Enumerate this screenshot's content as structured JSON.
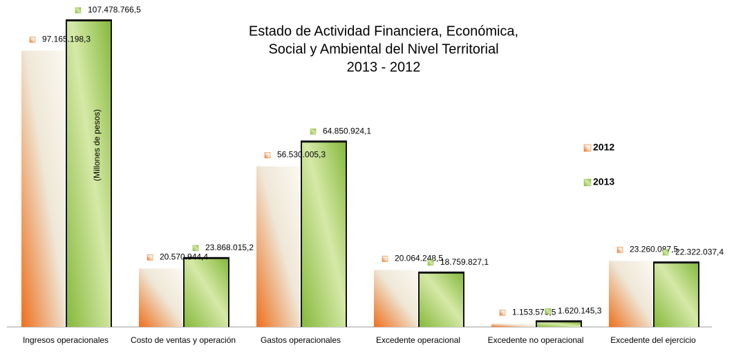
{
  "chart_data": {
    "type": "bar",
    "title": [
      "Estado de Actividad Financiera, Económica,",
      "Social y Ambiental del Nivel Territorial",
      "2013 - 2012"
    ],
    "y_label": "(Millones de pesos)",
    "categories": [
      "Ingresos operacionales",
      "Costo de ventas y operación",
      "Gastos operacionales",
      "Excedente operacional",
      "Excedente  no operacional",
      "Excedente del ejercicio"
    ],
    "series": [
      {
        "name": "2012",
        "color": "#ee6f1c",
        "values": [
          97165198.3,
          20570944.4,
          56530005.3,
          20064248.5,
          1153575.5,
          23260087.5
        ],
        "value_labels": [
          "97.165.198,3",
          "20.570.944,4",
          "56.530.005,3",
          "20.064.248,5",
          "1.153.575,5",
          "23.260.087,5"
        ]
      },
      {
        "name": "2013",
        "color": "#86b93c",
        "values": [
          107478766.5,
          23868015.2,
          64850924.1,
          18759827.1,
          1620145.3,
          22322037.4
        ],
        "value_labels": [
          "107.478.766,5",
          "23.868.015,2",
          "64.850.924,1",
          "18.759.827,1",
          "1.620.145,3",
          "22.322.037,4"
        ]
      }
    ],
    "ylim": [
      0,
      115000000
    ],
    "legend": "right"
  }
}
